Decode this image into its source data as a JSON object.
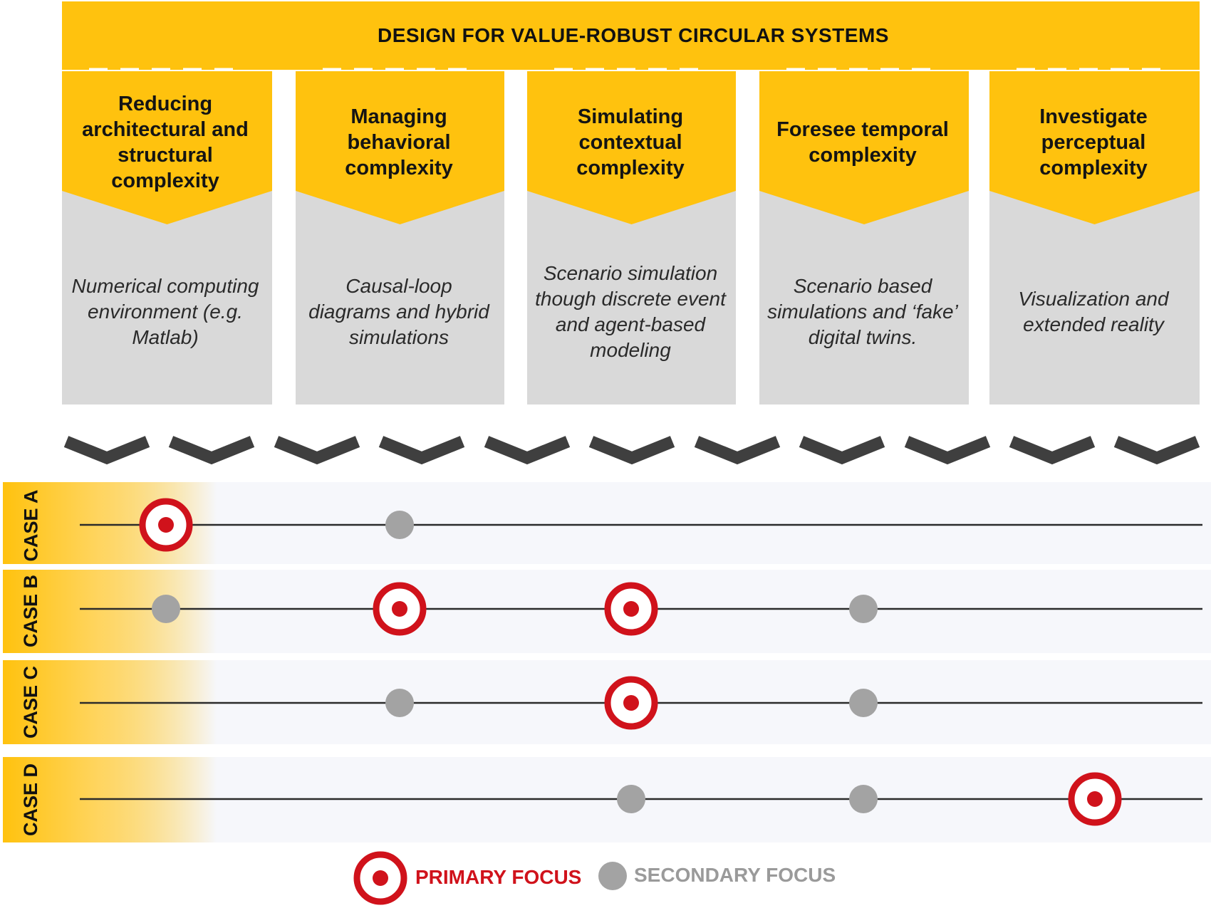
{
  "title": "DESIGN FOR VALUE-ROBUST CIRCULAR SYSTEMS",
  "columns": [
    {
      "heading": "Reducing architectural and structural complexity",
      "description": "Numerical computing environment (e.g. Matlab)"
    },
    {
      "heading": "Managing behavioral complexity",
      "description": "Causal-loop diagrams and hybrid simulations"
    },
    {
      "heading": "Simulating contextual complexity",
      "description": "Scenario simulation though discrete event and agent-based modeling"
    },
    {
      "heading": "Foresee temporal complexity",
      "description": "Scenario based simulations and ‘fake’ digital twins."
    },
    {
      "heading": "Investigate perceptual complexity",
      "description": "Visualization and extended reality"
    }
  ],
  "cases": [
    {
      "label": "CASE A",
      "primary": [
        1
      ],
      "secondary": [
        2
      ]
    },
    {
      "label": "CASE B",
      "primary": [
        2,
        3
      ],
      "secondary": [
        1,
        4
      ]
    },
    {
      "label": "CASE C",
      "primary": [
        3
      ],
      "secondary": [
        2,
        4
      ]
    },
    {
      "label": "CASE D",
      "primary": [
        5
      ],
      "secondary": [
        3,
        4
      ]
    }
  ],
  "legend": {
    "primary_label": "PRIMARY FOCUS",
    "secondary_label": "SECONDARY FOCUS"
  },
  "colors": {
    "header": "#FFC20E",
    "card": "#D9D9D9",
    "chevron": "#3F3F3F",
    "primary": "#D0121B",
    "secondary": "#A3A3A3",
    "row": "#F6F7FB"
  }
}
